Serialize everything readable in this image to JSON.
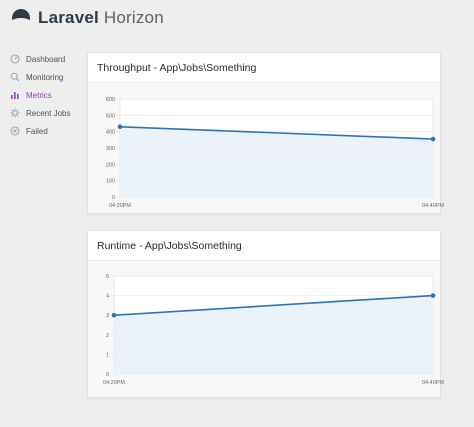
{
  "header": {
    "brand_strong": "Laravel",
    "brand_light": "Horizon"
  },
  "sidebar": {
    "items": [
      {
        "label": "Dashboard",
        "icon": "dashboard-icon",
        "active": false
      },
      {
        "label": "Monitoring",
        "icon": "monitoring-icon",
        "active": false
      },
      {
        "label": "Metrics",
        "icon": "metrics-icon",
        "active": true
      },
      {
        "label": "Recent Jobs",
        "icon": "recent-jobs-icon",
        "active": false
      },
      {
        "label": "Failed",
        "icon": "failed-icon",
        "active": false
      }
    ]
  },
  "colors": {
    "accent": "#8e3bbf",
    "series_line": "#2e75b6",
    "series_fill": "#eaf1f8"
  },
  "chart_data": [
    {
      "type": "line",
      "title": "Throughput - App\\Jobs\\Something",
      "x": [
        "04:20PM",
        "04:40PM"
      ],
      "series": [
        {
          "values": [
            430,
            355
          ]
        }
      ],
      "yticks": [
        "0",
        "100",
        "200",
        "300",
        "400",
        "500",
        "600"
      ],
      "ylim": [
        0,
        600
      ],
      "grid": true
    },
    {
      "type": "line",
      "title": "Runtime - App\\Jobs\\Something",
      "x": [
        "04:20PM",
        "04:40PM"
      ],
      "series": [
        {
          "values": [
            3,
            4
          ]
        }
      ],
      "yticks": [
        "0",
        "1",
        "2",
        "3",
        "4",
        "5"
      ],
      "ylim": [
        0,
        5
      ],
      "grid": true
    }
  ]
}
